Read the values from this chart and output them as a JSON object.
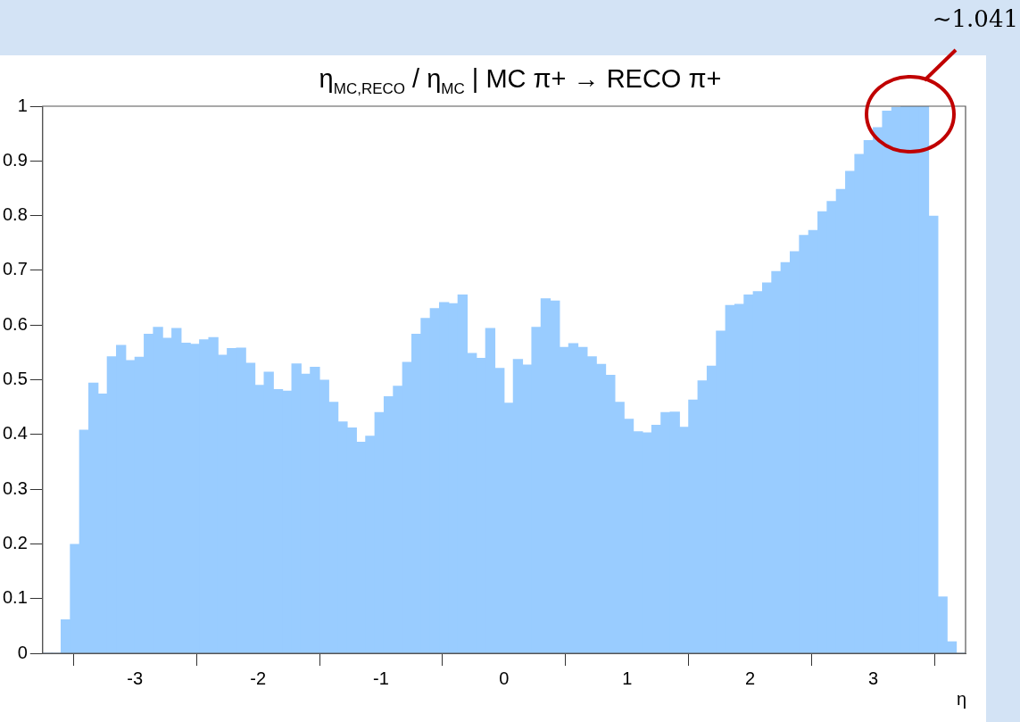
{
  "chart_data": {
    "type": "histogram",
    "title": "η$_{MC,RECO}$ / η$_{MC}$ | MC π+ → RECO π+",
    "xlabel": "η",
    "annotations": [
      "∼1.041"
    ],
    "bins": [
      -3.75,
      -3.675,
      -3.6,
      -3.525,
      -3.45,
      -3.375,
      -3.3,
      -3.225,
      -3.15,
      -3.075,
      -3,
      -2.925,
      -2.85,
      -2.775,
      -2.7,
      -2.625,
      -2.55,
      -2.475,
      -2.4,
      -2.325,
      -2.25,
      -2.175,
      -2.1,
      -2.025,
      -1.95,
      -1.875,
      -1.8,
      -1.725,
      -1.65,
      -1.575,
      -1.5,
      -1.425,
      -1.35,
      -1.275,
      -1.2,
      -1.125,
      -1.05,
      -0.975,
      -0.9,
      -0.825,
      -0.75,
      -0.675,
      -0.6,
      -0.525,
      -0.45,
      -0.375,
      -0.3,
      -0.225,
      -0.15,
      -0.075,
      0,
      0.075,
      0.15,
      0.225,
      0.3,
      0.375,
      0.45,
      0.525,
      0.6,
      0.675,
      0.75,
      0.825,
      0.9,
      0.975,
      1.05,
      1.125,
      1.2,
      1.275,
      1.35,
      1.425,
      1.5,
      1.575,
      1.65,
      1.725,
      1.8,
      1.875,
      1.95,
      2.025,
      2.1,
      2.175,
      2.25,
      2.325,
      2.4,
      2.475,
      2.55,
      2.625,
      2.7,
      2.775,
      2.85,
      2.925,
      3,
      3.075,
      3.15,
      3.225,
      3.3,
      3.375,
      3.45,
      3.525,
      3.6,
      3.675,
      3.75
    ],
    "values": [
      0,
      0,
      0.061,
      0.199,
      0.408,
      0.494,
      0.474,
      0.542,
      0.563,
      0.535,
      0.541,
      0.583,
      0.596,
      0.576,
      0.594,
      0.567,
      0.565,
      0.573,
      0.577,
      0.545,
      0.557,
      0.558,
      0.53,
      0.49,
      0.514,
      0.482,
      0.479,
      0.529,
      0.51,
      0.523,
      0.499,
      0.459,
      0.423,
      0.412,
      0.386,
      0.397,
      0.44,
      0.469,
      0.488,
      0.532,
      0.583,
      0.612,
      0.63,
      0.641,
      0.639,
      0.655,
      0.548,
      0.539,
      0.594,
      0.521,
      0.457,
      0.537,
      0.527,
      0.596,
      0.648,
      0.644,
      0.559,
      0.566,
      0.559,
      0.542,
      0.528,
      0.508,
      0.459,
      0.428,
      0.405,
      0.403,
      0.417,
      0.44,
      0.441,
      0.413,
      0.463,
      0.498,
      0.525,
      0.589,
      0.636,
      0.638,
      0.655,
      0.661,
      0.677,
      0.698,
      0.714,
      0.734,
      0.764,
      0.773,
      0.807,
      0.826,
      0.848,
      0.881,
      0.912,
      0.937,
      0.961,
      0.991,
      0.998,
      1,
      1,
      1,
      0.799,
      0.103,
      0.021,
      0
    ],
    "color": "#99ccff",
    "xlim": [
      -3.75,
      3.75
    ],
    "xticks": [
      -3,
      -2,
      -1,
      0,
      1,
      2,
      3
    ],
    "ylim": [
      0,
      1
    ],
    "yticks": [
      0,
      0.1,
      0.2,
      0.3,
      0.4,
      0.5,
      0.6,
      0.7,
      0.8,
      0.9,
      1
    ],
    "grid": false,
    "legend": false
  }
}
